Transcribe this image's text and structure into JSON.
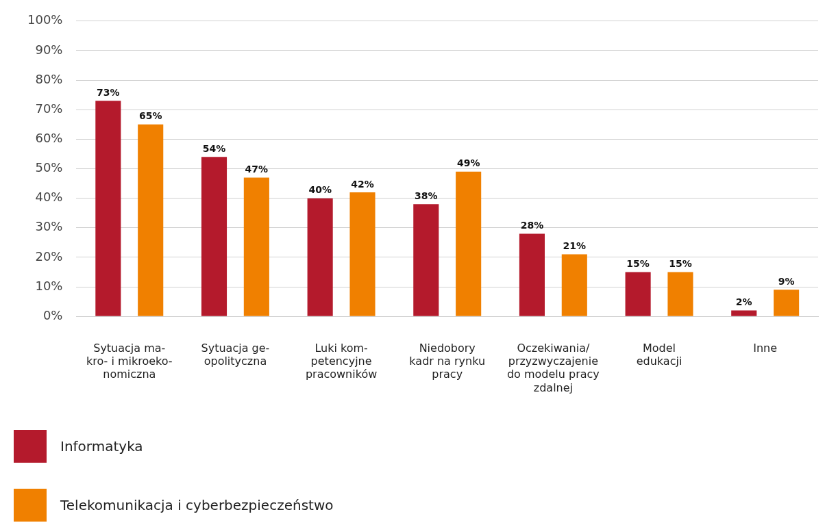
{
  "chart_data": {
    "type": "bar",
    "categories": [
      "Sytuacja ma-\nkro- i mikroeko-\nnomiczna",
      "Sytuacja ge-\nopolityczna",
      "Luki kom-\npetencyjne\npracowników",
      "Niedobory\nkadr na rynku\npracy",
      "Oczekiwania/\nprzyzwyczajenie\ndo modelu pracy\nzdalnej",
      "Model\nedukacji",
      "Inne"
    ],
    "series": [
      {
        "name": "Informatyka",
        "color": "#b41a2c",
        "values": [
          73,
          54,
          40,
          38,
          28,
          15,
          2
        ],
        "value_labels": [
          "73%",
          "54%",
          "40%",
          "38%",
          "28%",
          "15%",
          "2%"
        ]
      },
      {
        "name": "Telekomunikacja i cyberbezpieczeństwo",
        "color": "#f08000",
        "values": [
          65,
          47,
          42,
          49,
          21,
          15,
          9
        ],
        "value_labels": [
          "65%",
          "47%",
          "42%",
          "49%",
          "21%",
          "15%",
          "9%"
        ]
      }
    ],
    "ylim": [
      0,
      100
    ],
    "yticks": [
      {
        "value": 0,
        "label": "0%"
      },
      {
        "value": 10,
        "label": "10%"
      },
      {
        "value": 20,
        "label": "20%"
      },
      {
        "value": 30,
        "label": "30%"
      },
      {
        "value": 40,
        "label": "40%"
      },
      {
        "value": 50,
        "label": "50%"
      },
      {
        "value": 60,
        "label": "60%"
      },
      {
        "value": 70,
        "label": "70%"
      },
      {
        "value": 80,
        "label": "80%"
      },
      {
        "value": 90,
        "label": "90%"
      },
      {
        "value": 100,
        "label": "100%"
      }
    ],
    "grid": "y",
    "legend": "bottom left"
  }
}
